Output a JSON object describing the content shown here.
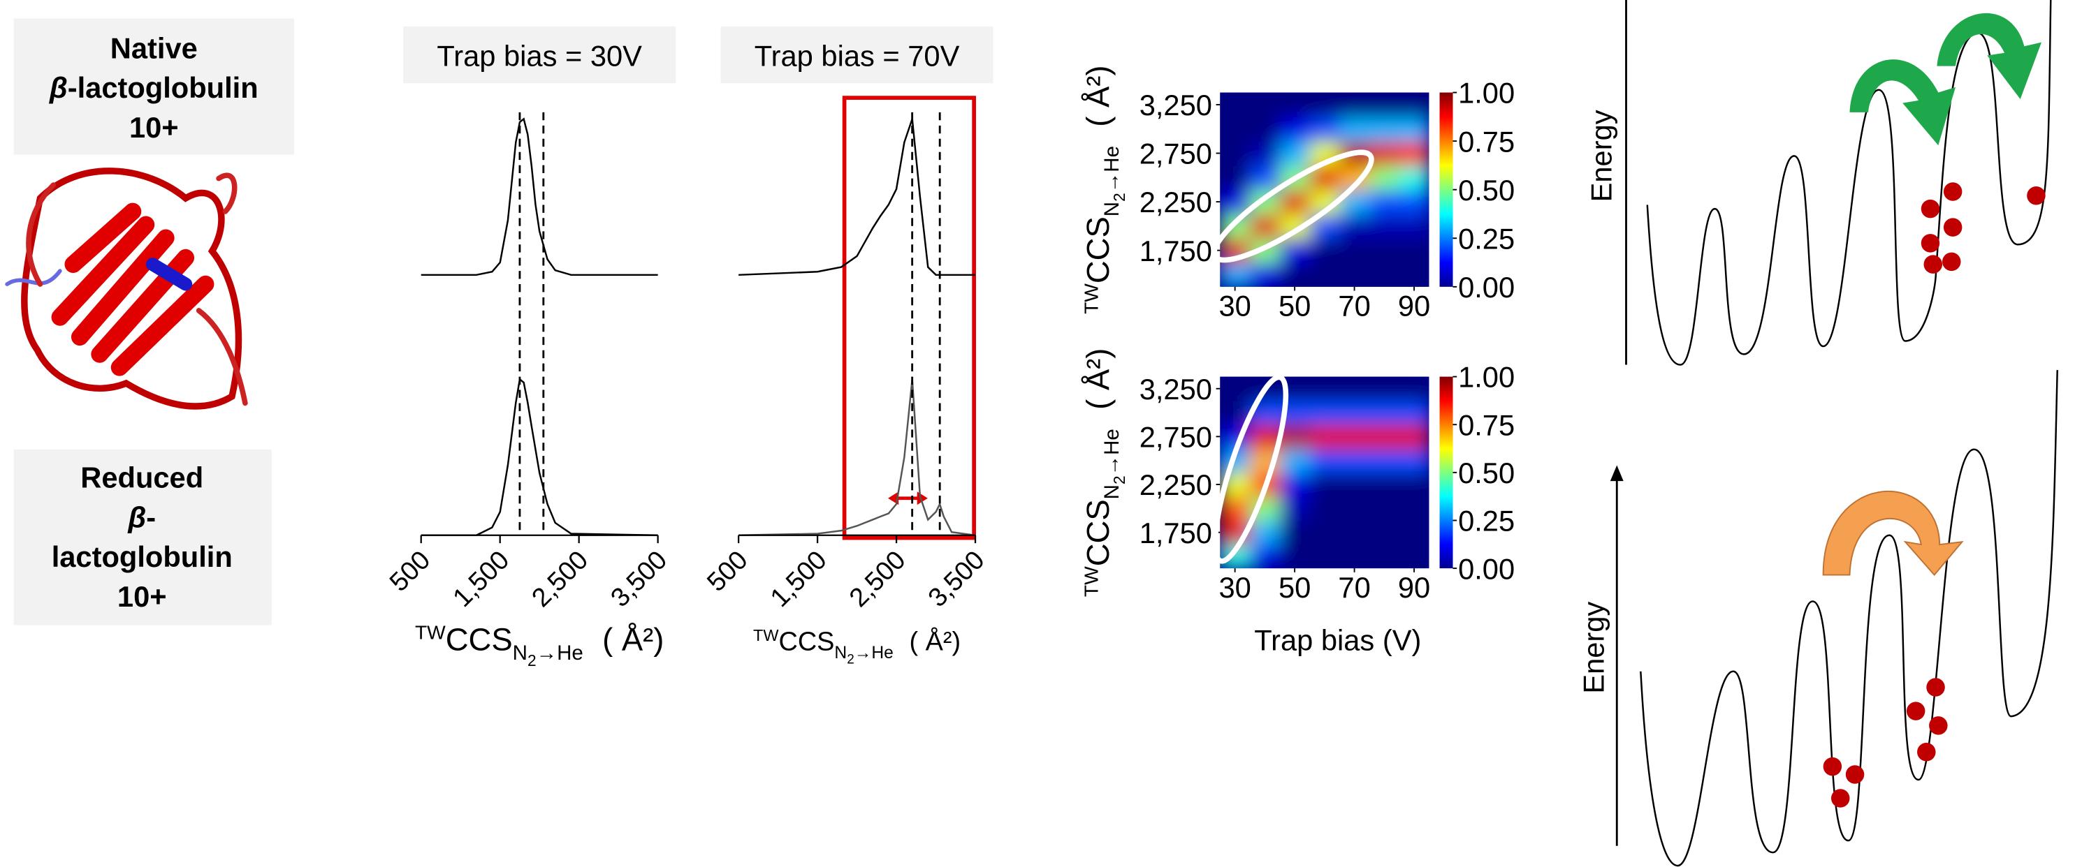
{
  "labels": {
    "native": {
      "line1": "Native",
      "beta": "β",
      "line2": "-lactoglobulin",
      "line3": "10+"
    },
    "reduced": {
      "line1": "Reduced",
      "beta": "β",
      "line2": "-",
      "line3": "lactoglobulin",
      "line4": "10+"
    },
    "energy": [
      "Energy",
      "Energy"
    ]
  },
  "chart_data": [
    {
      "type": "line",
      "title": "Trap bias = 30V",
      "x": [
        500,
        1200,
        1400,
        1500,
        1600,
        1700,
        1750,
        1800,
        1850,
        1900,
        1950,
        2000,
        2100,
        2200,
        2400,
        3500
      ],
      "series": [
        {
          "color": "#000000",
          "values": [
            0,
            0,
            0.02,
            0.08,
            0.35,
            0.85,
            0.98,
            1.0,
            0.9,
            0.7,
            0.45,
            0.28,
            0.1,
            0.03,
            0,
            0
          ]
        },
        {
          "color": "#000000",
          "values": [
            0,
            0,
            0.05,
            0.15,
            0.45,
            0.85,
            1.0,
            0.98,
            0.85,
            0.7,
            0.55,
            0.4,
            0.2,
            0.08,
            0.01,
            0
          ]
        }
      ],
      "reference_lines": [
        1750,
        2050
      ],
      "xlim": [
        500,
        3500
      ],
      "xticks": [
        500,
        {
          "value": 1500,
          "label": "1,500"
        },
        {
          "value": 2500,
          "label": "2,500"
        },
        {
          "value": 3500,
          "label": "3,500"
        }
      ],
      "x_label": {
        "sup": "TW",
        "base": "CCS",
        "sub": "N",
        "subsub": "2",
        "sub2": "→He",
        "unit": "( Å²)"
      }
    },
    {
      "type": "line",
      "title": "Trap bias = 70V",
      "x": [
        500,
        1500,
        1800,
        2000,
        2200,
        2300,
        2400,
        2500,
        2600,
        2700,
        2800,
        2900,
        3000,
        3050,
        3100,
        3200,
        3500
      ],
      "series": [
        {
          "color": "#000000",
          "values": [
            0,
            0.02,
            0.05,
            0.12,
            0.3,
            0.38,
            0.45,
            0.55,
            0.85,
            1.0,
            0.5,
            0.05,
            0,
            0,
            0,
            0,
            0
          ]
        },
        {
          "color": "#555555",
          "values": [
            0,
            0.01,
            0.03,
            0.06,
            0.1,
            0.12,
            0.14,
            0.2,
            0.5,
            1.0,
            0.25,
            0.1,
            0.15,
            0.2,
            0.12,
            0.02,
            0
          ]
        }
      ],
      "reference_lines": [
        2700,
        3050
      ],
      "xlim": [
        500,
        3500
      ],
      "xticks": [
        500,
        {
          "value": 1500,
          "label": "1,500"
        },
        {
          "value": 2500,
          "label": "2,500"
        },
        {
          "value": 3500,
          "label": "3,500"
        }
      ],
      "x_label": {
        "sup": "TW",
        "base": "CCS",
        "sub": "N",
        "subsub": "2",
        "sub2": "→He",
        "unit": "( Å²)"
      }
    },
    {
      "type": "heatmap",
      "x": [
        30,
        40,
        50,
        60,
        70,
        80,
        90
      ],
      "y": [
        1500,
        1750,
        2000,
        2250,
        2500,
        2750,
        3000,
        3250
      ],
      "z": [
        [
          0.3,
          0.1,
          0,
          0,
          0,
          0,
          0
        ],
        [
          0.9,
          0.5,
          0.1,
          0,
          0,
          0,
          0
        ],
        [
          0.5,
          0.9,
          0.6,
          0.2,
          0.05,
          0.05,
          0.05
        ],
        [
          0.1,
          0.5,
          0.9,
          0.6,
          0.3,
          0.2,
          0.2
        ],
        [
          0,
          0.2,
          0.5,
          0.9,
          0.7,
          0.5,
          0.4
        ],
        [
          0,
          0.05,
          0.3,
          0.6,
          0.95,
          0.9,
          0.85
        ],
        [
          0,
          0,
          0.1,
          0.2,
          0.3,
          0.3,
          0.3
        ],
        [
          0,
          0,
          0,
          0,
          0,
          0,
          0
        ]
      ],
      "xlim": [
        25,
        95
      ],
      "xticks": [
        30,
        50,
        70,
        90
      ],
      "ylim": [
        1375,
        3375
      ],
      "yticks": [
        {
          "value": 1750,
          "label": "1,750"
        },
        {
          "value": 2250,
          "label": "2,250"
        },
        {
          "value": 2750,
          "label": "2,750"
        },
        {
          "value": 3250,
          "label": "3,250"
        }
      ],
      "clim": [
        0,
        1
      ],
      "cticks": [
        {
          "value": 0,
          "label": "0.00"
        },
        {
          "value": 0.25,
          "label": "0.25"
        },
        {
          "value": 0.5,
          "label": "0.50"
        },
        {
          "value": 0.75,
          "label": "0.75"
        },
        {
          "value": 1,
          "label": "1.00"
        }
      ],
      "y_label": {
        "sup": "TW",
        "base": "CCS",
        "sub": "N",
        "subsub": "2",
        "sub2": "→He",
        "unit": "( Å²)"
      }
    },
    {
      "type": "heatmap",
      "x": [
        30,
        40,
        50,
        60,
        70,
        80,
        90
      ],
      "y": [
        1500,
        1750,
        2000,
        2250,
        2500,
        2750,
        3000,
        3250
      ],
      "z": [
        [
          0.4,
          0.1,
          0,
          0,
          0,
          0,
          0
        ],
        [
          0.9,
          0.3,
          0,
          0,
          0,
          0,
          0
        ],
        [
          0.8,
          0.5,
          0.05,
          0,
          0,
          0,
          0
        ],
        [
          0.6,
          0.8,
          0.1,
          0,
          0,
          0,
          0
        ],
        [
          0.3,
          0.7,
          0.3,
          0.2,
          0.2,
          0.2,
          0.2
        ],
        [
          0.1,
          0.9,
          0.95,
          0.9,
          0.9,
          0.9,
          0.9
        ],
        [
          0,
          0.2,
          0.2,
          0.2,
          0.2,
          0.2,
          0.2
        ],
        [
          0,
          0,
          0,
          0,
          0,
          0,
          0
        ]
      ],
      "xlim": [
        25,
        95
      ],
      "xticks": [
        30,
        50,
        70,
        90
      ],
      "ylim": [
        1375,
        3375
      ],
      "yticks": [
        {
          "value": 1750,
          "label": "1,750"
        },
        {
          "value": 2250,
          "label": "2,250"
        },
        {
          "value": 2750,
          "label": "2,750"
        },
        {
          "value": 3250,
          "label": "3,250"
        }
      ],
      "clim": [
        0,
        1
      ],
      "cticks": [
        {
          "value": 0,
          "label": "0.00"
        },
        {
          "value": 0.25,
          "label": "0.25"
        },
        {
          "value": 0.5,
          "label": "0.50"
        },
        {
          "value": 0.75,
          "label": "0.75"
        },
        {
          "value": 1,
          "label": "1.00"
        }
      ],
      "y_label": {
        "sup": "TW",
        "base": "CCS",
        "sub": "N",
        "subsub": "2",
        "sub2": "→He",
        "unit": "( Å²)"
      },
      "x_label": "Trap bias (V)"
    }
  ]
}
